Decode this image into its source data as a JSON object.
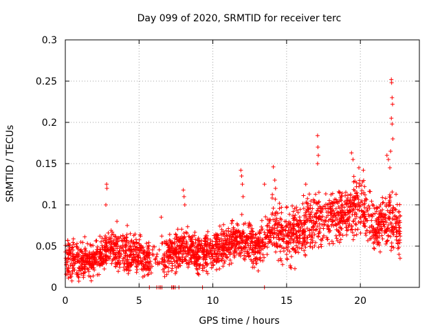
{
  "chart_data": {
    "type": "scatter",
    "title": "Day 099 of 2020, SRMTID for receiver terc",
    "xlabel": "GPS time / hours",
    "ylabel": "SRMTID / TECUs",
    "xlim": [
      0,
      24
    ],
    "ylim": [
      0,
      0.3
    ],
    "x_ticks": [
      0,
      5,
      10,
      15,
      20
    ],
    "y_ticks": [
      0,
      0.05,
      0.1,
      0.15,
      0.2,
      0.25,
      0.3
    ],
    "x_tick_labels": [
      "0",
      "5",
      "10",
      "15",
      "20"
    ],
    "y_tick_labels": [
      "0",
      "0.05",
      "0.1",
      "0.15",
      "0.2",
      "0.25",
      "0.3"
    ],
    "grid": true,
    "marker": "+",
    "series_color": "#ff0000",
    "trend": [
      [
        0.0,
        0.035
      ],
      [
        1.0,
        0.03
      ],
      [
        2.0,
        0.035
      ],
      [
        3.0,
        0.05
      ],
      [
        4.0,
        0.04
      ],
      [
        5.0,
        0.04
      ],
      [
        6.0,
        0.03
      ],
      [
        7.0,
        0.04
      ],
      [
        8.0,
        0.05
      ],
      [
        9.0,
        0.04
      ],
      [
        10.0,
        0.045
      ],
      [
        11.0,
        0.05
      ],
      [
        12.0,
        0.06
      ],
      [
        13.0,
        0.045
      ],
      [
        14.0,
        0.075
      ],
      [
        15.0,
        0.06
      ],
      [
        16.0,
        0.07
      ],
      [
        17.0,
        0.08
      ],
      [
        18.0,
        0.085
      ],
      [
        19.0,
        0.09
      ],
      [
        20.0,
        0.1
      ],
      [
        21.0,
        0.075
      ],
      [
        22.0,
        0.08
      ],
      [
        22.7,
        0.07
      ]
    ],
    "spikes": [
      [
        2.8,
        0.125
      ],
      [
        2.82,
        0.12
      ],
      [
        2.75,
        0.1
      ],
      [
        3.5,
        0.08
      ],
      [
        4.2,
        0.075
      ],
      [
        6.5,
        0.085
      ],
      [
        8.0,
        0.118
      ],
      [
        8.05,
        0.11
      ],
      [
        8.1,
        0.1
      ],
      [
        11.9,
        0.142
      ],
      [
        11.95,
        0.135
      ],
      [
        12.0,
        0.125
      ],
      [
        12.05,
        0.11
      ],
      [
        13.5,
        0.125
      ],
      [
        14.1,
        0.146
      ],
      [
        14.2,
        0.13
      ],
      [
        14.25,
        0.12
      ],
      [
        16.3,
        0.125
      ],
      [
        17.1,
        0.184
      ],
      [
        17.12,
        0.17
      ],
      [
        17.15,
        0.16
      ],
      [
        17.1,
        0.15
      ],
      [
        19.4,
        0.163
      ],
      [
        19.5,
        0.155
      ],
      [
        19.9,
        0.145
      ],
      [
        20.2,
        0.142
      ],
      [
        21.8,
        0.16
      ],
      [
        21.9,
        0.155
      ],
      [
        22.0,
        0.145
      ],
      [
        22.1,
        0.252
      ],
      [
        22.12,
        0.248
      ],
      [
        22.15,
        0.23
      ],
      [
        22.18,
        0.222
      ],
      [
        22.1,
        0.205
      ],
      [
        22.15,
        0.198
      ],
      [
        22.2,
        0.18
      ],
      [
        22.05,
        0.165
      ]
    ],
    "baseline_points": [
      5.7,
      6.2,
      6.35,
      6.45,
      6.55,
      7.2,
      7.3,
      7.35,
      7.45,
      7.7,
      9.3,
      13.5
    ]
  }
}
